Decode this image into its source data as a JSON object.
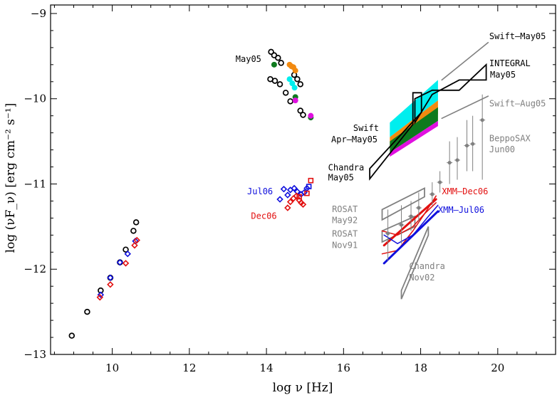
{
  "chart_data": {
    "type": "scatter",
    "xlabel_text": "log ν [Hz]",
    "ylabel_text": "log (νF_ν) [erg cm⁻² s⁻¹]",
    "xlim": [
      8.4,
      21.5
    ],
    "ylim": [
      -13.0,
      -8.9
    ],
    "x_ticks": [
      10,
      12,
      14,
      16,
      18,
      20
    ],
    "y_ticks": [
      -13,
      -12,
      -11,
      -10,
      -9
    ],
    "colors": {
      "black": "#000000",
      "blue": "#1010dd",
      "red": "#e21010",
      "cyan": "#00eeee",
      "orange": "#f28a10",
      "green": "#0e7a1e",
      "magenta": "#e010e0",
      "gray": "#808080"
    },
    "series": [
      {
        "marker": "circle-open",
        "color": "#000000",
        "x": [
          8.95,
          9.35,
          9.7,
          9.95,
          10.2,
          10.35,
          10.55,
          10.62,
          14.12,
          14.2,
          14.3,
          14.38,
          14.1,
          14.22,
          14.35,
          14.5,
          14.62,
          14.72,
          14.8,
          14.88,
          14.88,
          14.95
        ],
        "y": [
          -12.78,
          -12.5,
          -12.25,
          -12.1,
          -11.92,
          -11.77,
          -11.55,
          -11.45,
          -9.45,
          -9.49,
          -9.52,
          -9.58,
          -9.77,
          -9.79,
          -9.83,
          -9.93,
          -10.03,
          -9.72,
          -9.77,
          -9.83,
          -10.14,
          -10.19
        ]
      },
      {
        "marker": "diamond-open",
        "color": "#1010dd",
        "x": [
          9.7,
          9.95,
          10.2,
          10.4,
          10.6,
          14.35,
          14.45,
          14.55,
          14.62,
          14.72,
          14.8,
          14.9,
          14.98,
          15.05
        ],
        "y": [
          -12.3,
          -12.1,
          -11.92,
          -11.82,
          -11.67,
          -11.18,
          -11.06,
          -11.13,
          -11.07,
          -11.05,
          -11.09,
          -11.12,
          -11.1,
          -11.05
        ]
      },
      {
        "marker": "square-open",
        "color": "#1010dd",
        "x": [
          15.1
        ],
        "y": [
          -11.03
        ]
      },
      {
        "marker": "diamond-open",
        "color": "#e21010",
        "x": [
          9.68,
          9.95,
          10.35,
          10.58,
          10.64,
          14.55,
          14.62,
          14.7,
          14.78,
          14.85,
          14.9,
          14.95
        ],
        "y": [
          -12.33,
          -12.18,
          -11.93,
          -11.72,
          -11.66,
          -11.28,
          -11.21,
          -11.17,
          -11.14,
          -11.19,
          -11.22,
          -11.24
        ]
      },
      {
        "marker": "square-open",
        "color": "#e21010",
        "x": [
          14.85,
          15.05,
          15.15
        ],
        "y": [
          -11.15,
          -11.11,
          -10.96
        ]
      },
      {
        "marker": "circle-filled",
        "color": "#f28a10",
        "x": [
          14.6,
          14.65,
          14.7,
          14.75
        ],
        "y": [
          -9.6,
          -9.62,
          -9.63,
          -9.67
        ]
      },
      {
        "marker": "circle-filled",
        "color": "#00eeee",
        "x": [
          14.6,
          14.67,
          14.73
        ],
        "y": [
          -9.77,
          -9.82,
          -9.87
        ]
      },
      {
        "marker": "circle-filled",
        "color": "#0e7a1e",
        "x": [
          14.2,
          14.75,
          15.15
        ],
        "y": [
          -9.6,
          -9.98,
          -10.22
        ]
      },
      {
        "marker": "circle-filled",
        "color": "#e010e0",
        "x": [
          14.75,
          15.15
        ],
        "y": [
          -10.02,
          -10.2
        ]
      },
      {
        "marker": "circle-filled-errorbar",
        "color": "#808080",
        "x": [
          17.15,
          17.5,
          17.75,
          17.95,
          18.3,
          18.5,
          18.75,
          18.95,
          19.2,
          19.35,
          19.6
        ],
        "y": [
          -11.58,
          -11.48,
          -11.38,
          -11.28,
          -11.12,
          -10.98,
          -10.75,
          -10.72,
          -10.55,
          -10.53,
          -10.25
        ],
        "ylow": [
          -11.9,
          -11.7,
          -11.55,
          -11.45,
          -11.25,
          -11.1,
          -11.0,
          -10.95,
          -10.85,
          -10.85,
          -10.95
        ],
        "yhigh": [
          -11.3,
          -11.25,
          -11.2,
          -11.1,
          -10.98,
          -10.85,
          -10.5,
          -10.45,
          -10.25,
          -10.2,
          -9.95
        ]
      }
    ],
    "bands": [
      {
        "color": "#00eeee",
        "x": [
          17.2,
          18.45
        ],
        "top": [
          -10.28,
          -9.78
        ],
        "bottom": [
          -10.45,
          -10.02
        ]
      },
      {
        "color": "#f28a10",
        "x": [
          17.2,
          18.45
        ],
        "top": [
          -10.45,
          -10.02
        ],
        "bottom": [
          -10.58,
          -10.18
        ]
      },
      {
        "color": "#0e7a1e",
        "x": [
          17.2,
          18.45
        ],
        "top": [
          -10.5,
          -10.1
        ],
        "bottom": [
          -10.63,
          -10.26
        ]
      },
      {
        "color": "#e010e0",
        "x": [
          17.2,
          18.45
        ],
        "top": [
          -10.63,
          -10.26
        ],
        "bottom": [
          -10.68,
          -10.32
        ]
      }
    ],
    "outlines": [
      {
        "color": "#000000",
        "points": [
          [
            16.68,
            -10.94
          ],
          [
            17.8,
            -10.3
          ],
          [
            17.8,
            -9.93
          ],
          [
            18.02,
            -9.93
          ],
          [
            18.02,
            -10.16
          ],
          [
            16.68,
            -10.82
          ]
        ]
      },
      {
        "color": "#000000",
        "points": [
          [
            17.85,
            -10.28
          ],
          [
            17.85,
            -10.0
          ],
          [
            18.3,
            -9.9
          ],
          [
            19.0,
            -9.9
          ],
          [
            19.7,
            -9.6
          ],
          [
            19.7,
            -9.78
          ],
          [
            19.0,
            -9.78
          ],
          [
            18.3,
            -9.95
          ]
        ]
      },
      {
        "color": "#808080",
        "points": [
          [
            17.0,
            -11.3
          ],
          [
            18.1,
            -11.05
          ],
          [
            18.1,
            -11.15
          ],
          [
            17.0,
            -11.42
          ]
        ]
      },
      {
        "color": "#808080",
        "points": [
          [
            17.0,
            -11.55
          ],
          [
            17.85,
            -11.38
          ],
          [
            17.85,
            -11.5
          ],
          [
            17.0,
            -11.68
          ]
        ]
      },
      {
        "color": "#808080",
        "points": [
          [
            17.5,
            -12.25
          ],
          [
            18.2,
            -11.5
          ],
          [
            18.2,
            -11.6
          ],
          [
            17.5,
            -12.35
          ]
        ]
      }
    ],
    "lines": [
      {
        "color": "#808080",
        "width": 1.6,
        "points": [
          [
            18.55,
            -9.78
          ],
          [
            19.75,
            -9.34
          ]
        ]
      },
      {
        "color": "#808080",
        "width": 1.6,
        "points": [
          [
            18.55,
            -10.23
          ],
          [
            19.75,
            -9.97
          ]
        ]
      },
      {
        "color": "#e21010",
        "width": 3,
        "points": [
          [
            17.05,
            -11.72
          ],
          [
            18.4,
            -11.18
          ]
        ]
      },
      {
        "color": "#e21010",
        "width": 1.5,
        "points": [
          [
            17.0,
            -11.55
          ],
          [
            17.4,
            -11.6
          ],
          [
            17.8,
            -11.5
          ],
          [
            18.1,
            -11.35
          ],
          [
            18.4,
            -11.14
          ]
        ]
      },
      {
        "color": "#e21010",
        "width": 1.5,
        "points": [
          [
            17.0,
            -11.82
          ],
          [
            17.4,
            -11.78
          ],
          [
            17.8,
            -11.55
          ],
          [
            18.1,
            -11.35
          ],
          [
            18.4,
            -11.22
          ]
        ]
      },
      {
        "color": "#1010dd",
        "width": 3,
        "points": [
          [
            17.05,
            -11.93
          ],
          [
            18.45,
            -11.32
          ]
        ]
      },
      {
        "color": "#1010dd",
        "width": 1.5,
        "points": [
          [
            17.05,
            -11.6
          ],
          [
            17.4,
            -11.7
          ],
          [
            17.8,
            -11.6
          ],
          [
            18.2,
            -11.38
          ],
          [
            18.45,
            -11.25
          ]
        ]
      }
    ],
    "annotations": [
      {
        "text": "May05",
        "color": "#000000",
        "x": 13.2,
        "y": -9.57
      },
      {
        "text": "Jul06",
        "color": "#1010dd",
        "x": 13.5,
        "y": -11.12
      },
      {
        "text": "Dec06",
        "color": "#e21010",
        "x": 13.6,
        "y": -11.41
      },
      {
        "text": "Swift–May05",
        "color": "#000000",
        "x": 19.78,
        "y": -9.3
      },
      {
        "text": "INTEGRAL",
        "color": "#000000",
        "x": 19.78,
        "y": -9.62
      },
      {
        "text": "May05",
        "color": "#000000",
        "x": 19.8,
        "y": -9.75
      },
      {
        "text": "Swift–Aug05",
        "color": "#808080",
        "x": 19.78,
        "y": -10.09
      },
      {
        "text": "Swift",
        "color": "#000000",
        "x": 16.25,
        "y": -10.38
      },
      {
        "text": "Apr–May05",
        "color": "#000000",
        "x": 15.68,
        "y": -10.51
      },
      {
        "text": "Chandra",
        "color": "#000000",
        "x": 15.6,
        "y": -10.84
      },
      {
        "text": "May05",
        "color": "#000000",
        "x": 15.6,
        "y": -10.96
      },
      {
        "text": "BeppoSAX",
        "color": "#808080",
        "x": 19.78,
        "y": -10.5
      },
      {
        "text": "Jun00",
        "color": "#808080",
        "x": 19.78,
        "y": -10.63
      },
      {
        "text": "XMM–Dec06",
        "color": "#e21010",
        "x": 18.55,
        "y": -11.12
      },
      {
        "text": "XMM–Jul06",
        "color": "#1010dd",
        "x": 18.45,
        "y": -11.34
      },
      {
        "text": "ROSAT",
        "color": "#808080",
        "x": 15.7,
        "y": -11.33
      },
      {
        "text": "May92",
        "color": "#808080",
        "x": 15.7,
        "y": -11.46
      },
      {
        "text": "ROSAT",
        "color": "#808080",
        "x": 15.7,
        "y": -11.62
      },
      {
        "text": "Nov91",
        "color": "#808080",
        "x": 15.7,
        "y": -11.75
      },
      {
        "text": "Chandra",
        "color": "#808080",
        "x": 17.7,
        "y": -12.0
      },
      {
        "text": "Nov02",
        "color": "#808080",
        "x": 17.7,
        "y": -12.13
      }
    ]
  }
}
